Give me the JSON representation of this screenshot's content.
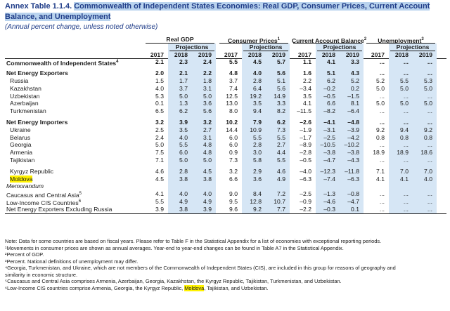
{
  "title_number": "Annex Table 1.1.4.",
  "title_text": "Commonwealth of Independent States Economies: Real GDP, Consumer Prices, Current Account Balance, and Unemployment",
  "subtitle": "(Annual percent change, unless noted otherwise)",
  "header": {
    "groups": [
      "Real GDP",
      "Consumer Prices",
      "Current Account Balance",
      "Unemployment"
    ],
    "group_sups": [
      "",
      "1",
      "2",
      "3"
    ],
    "projections": "Projections",
    "years": [
      "2017",
      "2018",
      "2019"
    ]
  },
  "rows": [
    {
      "label": "Commonwealth of Independent States",
      "sup": "4",
      "bold": true,
      "indent": false,
      "v": [
        "2.1",
        "2.3",
        "2.4",
        "5.5",
        "4.5",
        "5.7",
        "1.1",
        "4.1",
        "3.3",
        "...",
        "...",
        "..."
      ]
    },
    {
      "gap": true
    },
    {
      "label": "Net Energy Exporters",
      "bold": true,
      "indent": false,
      "v": [
        "2.0",
        "2.1",
        "2.2",
        "4.8",
        "4.0",
        "5.6",
        "1.6",
        "5.1",
        "4.3",
        "...",
        "...",
        "..."
      ]
    },
    {
      "label": "Russia",
      "v": [
        "1.5",
        "1.7",
        "1.8",
        "3.7",
        "2.8",
        "5.1",
        "2.2",
        "6.2",
        "5.2",
        "5.2",
        "5.5",
        "5.3"
      ]
    },
    {
      "label": "Kazakhstan",
      "v": [
        "4.0",
        "3.7",
        "3.1",
        "7.4",
        "6.4",
        "5.6",
        "–3.4",
        "–0.2",
        "0.2",
        "5.0",
        "5.0",
        "5.0"
      ]
    },
    {
      "label": "Uzbekistan",
      "v": [
        "5.3",
        "5.0",
        "5.0",
        "12.5",
        "19.2",
        "14.9",
        "3.5",
        "–0.5",
        "–1.5",
        "...",
        "...",
        "..."
      ]
    },
    {
      "label": "Azerbaijan",
      "v": [
        "0.1",
        "1.3",
        "3.6",
        "13.0",
        "3.5",
        "3.3",
        "4.1",
        "6.6",
        "8.1",
        "5.0",
        "5.0",
        "5.0"
      ]
    },
    {
      "label": "Turkmenistan",
      "v": [
        "6.5",
        "6.2",
        "5.6",
        "8.0",
        "9.4",
        "8.2",
        "–11.5",
        "–8.2",
        "–6.4",
        "...",
        "...",
        "..."
      ]
    },
    {
      "gap": true
    },
    {
      "label": "Net Energy Importers",
      "bold": true,
      "indent": false,
      "v": [
        "3.2",
        "3.9",
        "3.2",
        "10.2",
        "7.9",
        "6.2",
        "–2.6",
        "–4.1",
        "–4.8",
        "...",
        "...",
        "..."
      ]
    },
    {
      "label": "Ukraine",
      "v": [
        "2.5",
        "3.5",
        "2.7",
        "14.4",
        "10.9",
        "7.3",
        "–1.9",
        "–3.1",
        "–3.9",
        "9.2",
        "9.4",
        "9.2"
      ]
    },
    {
      "label": "Belarus",
      "v": [
        "2.4",
        "4.0",
        "3.1",
        "6.0",
        "5.5",
        "5.5",
        "–1.7",
        "–2.5",
        "–4.2",
        "0.8",
        "0.8",
        "0.8"
      ]
    },
    {
      "label": "Georgia",
      "v": [
        "5.0",
        "5.5",
        "4.8",
        "6.0",
        "2.8",
        "2.7",
        "–8.9",
        "–10.5",
        "–10.2",
        "...",
        "...",
        "..."
      ]
    },
    {
      "label": "Armenia",
      "v": [
        "7.5",
        "6.0",
        "4.8",
        "0.9",
        "3.0",
        "4.4",
        "–2.8",
        "–3.8",
        "–3.8",
        "18.9",
        "18.9",
        "18.6"
      ]
    },
    {
      "label": "Tajikistan",
      "v": [
        "7.1",
        "5.0",
        "5.0",
        "7.3",
        "5.8",
        "5.5",
        "–0.5",
        "–4.7",
        "–4.3",
        "...",
        "...",
        "..."
      ]
    },
    {
      "gap": true
    },
    {
      "label": "Kyrgyz Republic",
      "v": [
        "4.6",
        "2.8",
        "4.5",
        "3.2",
        "2.9",
        "4.6",
        "–4.0",
        "–12.3",
        "–11.8",
        "7.1",
        "7.0",
        "7.0"
      ]
    },
    {
      "label": "Moldova",
      "hl": true,
      "v": [
        "4.5",
        "3.8",
        "3.8",
        "6.6",
        "3.6",
        "4.9",
        "–6.3",
        "–7.4",
        "–6.3",
        "4.1",
        "4.1",
        "4.0"
      ]
    },
    {
      "label": "Memorandum",
      "italic": true,
      "indent": false,
      "v": []
    },
    {
      "label": "Caucasus and Central Asia",
      "sup": "5",
      "indent": false,
      "v": [
        "4.1",
        "4.0",
        "4.0",
        "9.0",
        "8.4",
        "7.2",
        "–2.5",
        "–1.3",
        "–0.8",
        "...",
        "...",
        "..."
      ]
    },
    {
      "label": "Low-Income CIS Countries",
      "sup": "6",
      "indent": false,
      "v": [
        "5.5",
        "4.9",
        "4.9",
        "9.5",
        "12.8",
        "10.7",
        "–0.9",
        "–4.6",
        "–4.7",
        "...",
        "...",
        "..."
      ]
    },
    {
      "label": "Net Energy Exporters Excluding Russia",
      "indent": false,
      "v": [
        "3.9",
        "3.8",
        "3.9",
        "9.6",
        "9.2",
        "7.7",
        "–2.2",
        "–0.3",
        "0.1",
        "...",
        "...",
        "..."
      ]
    }
  ],
  "notes": [
    "Note: Data for some countries are based on fiscal years. Please refer to Table F in the Statistical Appendix for a list of economies with exceptional reporting periods.",
    "¹Movements in consumer prices are shown as annual averages. Year-end to year-end changes can be found in Table A7 in the Statistical Appendix.",
    "²Percent of GDP.",
    "³Percent. National definitions of unemployment may differ.",
    "⁴Georgia, Turkmenistan, and Ukraine, which are not members of the Commonwealth of Independent States (CIS), are included in this group for reasons of geography and",
    "similarity in economic structure.",
    "⁵Caucasus and Central Asia comprises Armenia, Azerbaijan, Georgia, Kazakhstan, the Kyrgyz Republic, Tajikistan, Turkmenistan, and Uzbekistan."
  ],
  "last_note": {
    "before": "⁶Low-Income CIS countries comprise Armenia, Georgia, the Kyrgyz Republic, ",
    "highlight": "Moldova",
    "after": ", Tajikistan, and Uzbekistan."
  }
}
